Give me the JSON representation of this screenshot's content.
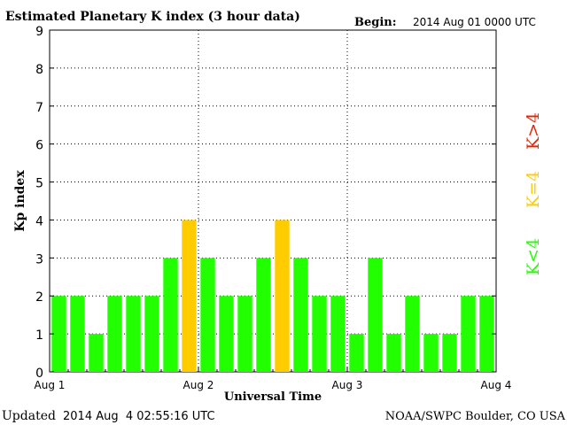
{
  "chart_data": {
    "type": "bar",
    "title": "Estimated Planetary K index (3 hour data)",
    "begin_label": "Begin:",
    "begin_value": "2014 Aug 01 0000 UTC",
    "xlabel": "Universal Time",
    "ylabel": "Kp index",
    "ylim": [
      0,
      9
    ],
    "y_ticks": [
      "0",
      "1",
      "2",
      "3",
      "4",
      "5",
      "6",
      "7",
      "8",
      "9"
    ],
    "x_ticks": [
      "Aug 1",
      "Aug 2",
      "Aug 3",
      "Aug 4"
    ],
    "grid": true,
    "values": [
      2,
      2,
      1,
      2,
      2,
      2,
      3,
      4,
      3,
      2,
      2,
      3,
      4,
      3,
      2,
      2,
      1,
      3,
      1,
      2,
      1,
      1,
      2,
      2
    ],
    "legend": [
      {
        "label": "K<4",
        "color": "#22ff00"
      },
      {
        "label": "K=4",
        "color": "#ffcc00"
      },
      {
        "label": "K>4",
        "color": "#ee2200"
      }
    ],
    "colors": {
      "low": "#22ff00",
      "equal": "#ffcc00",
      "high": "#ee2200"
    }
  },
  "footer": {
    "updated_label": "Updated",
    "updated_value": "2014 Aug  4 02:55:16 UTC",
    "source": "NOAA/SWPC Boulder, CO USA"
  }
}
